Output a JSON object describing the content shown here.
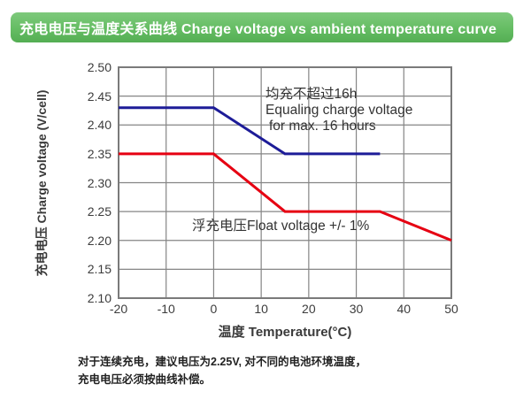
{
  "header": {
    "title": "充电电压与温度关系曲线 Charge voltage vs ambient temperature curve",
    "bar_color": "#65bd63",
    "text_color": "#ffffff"
  },
  "chart_data": {
    "type": "line",
    "xlabel": "温度 Temperature(°C)",
    "ylabel": "充电电压 Charge voltage (V/cell)",
    "xlim": [
      -20,
      50
    ],
    "ylim": [
      2.1,
      2.5
    ],
    "xticks": [
      "-20",
      "-10",
      "0",
      "10",
      "20",
      "30",
      "40",
      "50"
    ],
    "yticks": [
      "2.50",
      "2.45",
      "2.40",
      "2.35",
      "2.30",
      "2.25",
      "2.20",
      "2.15",
      "2.10"
    ],
    "grid": true,
    "gridline_color": "#858585",
    "frame_color": "#7a7a7a",
    "series": [
      {
        "name": "Equalizing charge voltage",
        "color": "#1d1c98",
        "points": [
          [
            -20,
            2.43
          ],
          [
            0,
            2.43
          ],
          [
            15,
            2.35
          ],
          [
            35,
            2.35
          ]
        ]
      },
      {
        "name": "Float voltage",
        "color": "#e60012",
        "points": [
          [
            -20,
            2.35
          ],
          [
            0,
            2.35
          ],
          [
            15,
            2.25
          ],
          [
            35,
            2.25
          ],
          [
            50,
            2.2
          ]
        ]
      }
    ],
    "annotations": [
      {
        "lines": [
          "均充不超过16h",
          "Equaling charge voltage",
          "for max. 16 hours"
        ]
      },
      {
        "lines": [
          "浮充电压Float voltage +/- 1%"
        ]
      }
    ]
  },
  "footer": {
    "line1": "对于连续充电，建议电压为2.25V, 对不同的电池环境温度，",
    "line2": "充电电压必须按曲线补偿。"
  }
}
